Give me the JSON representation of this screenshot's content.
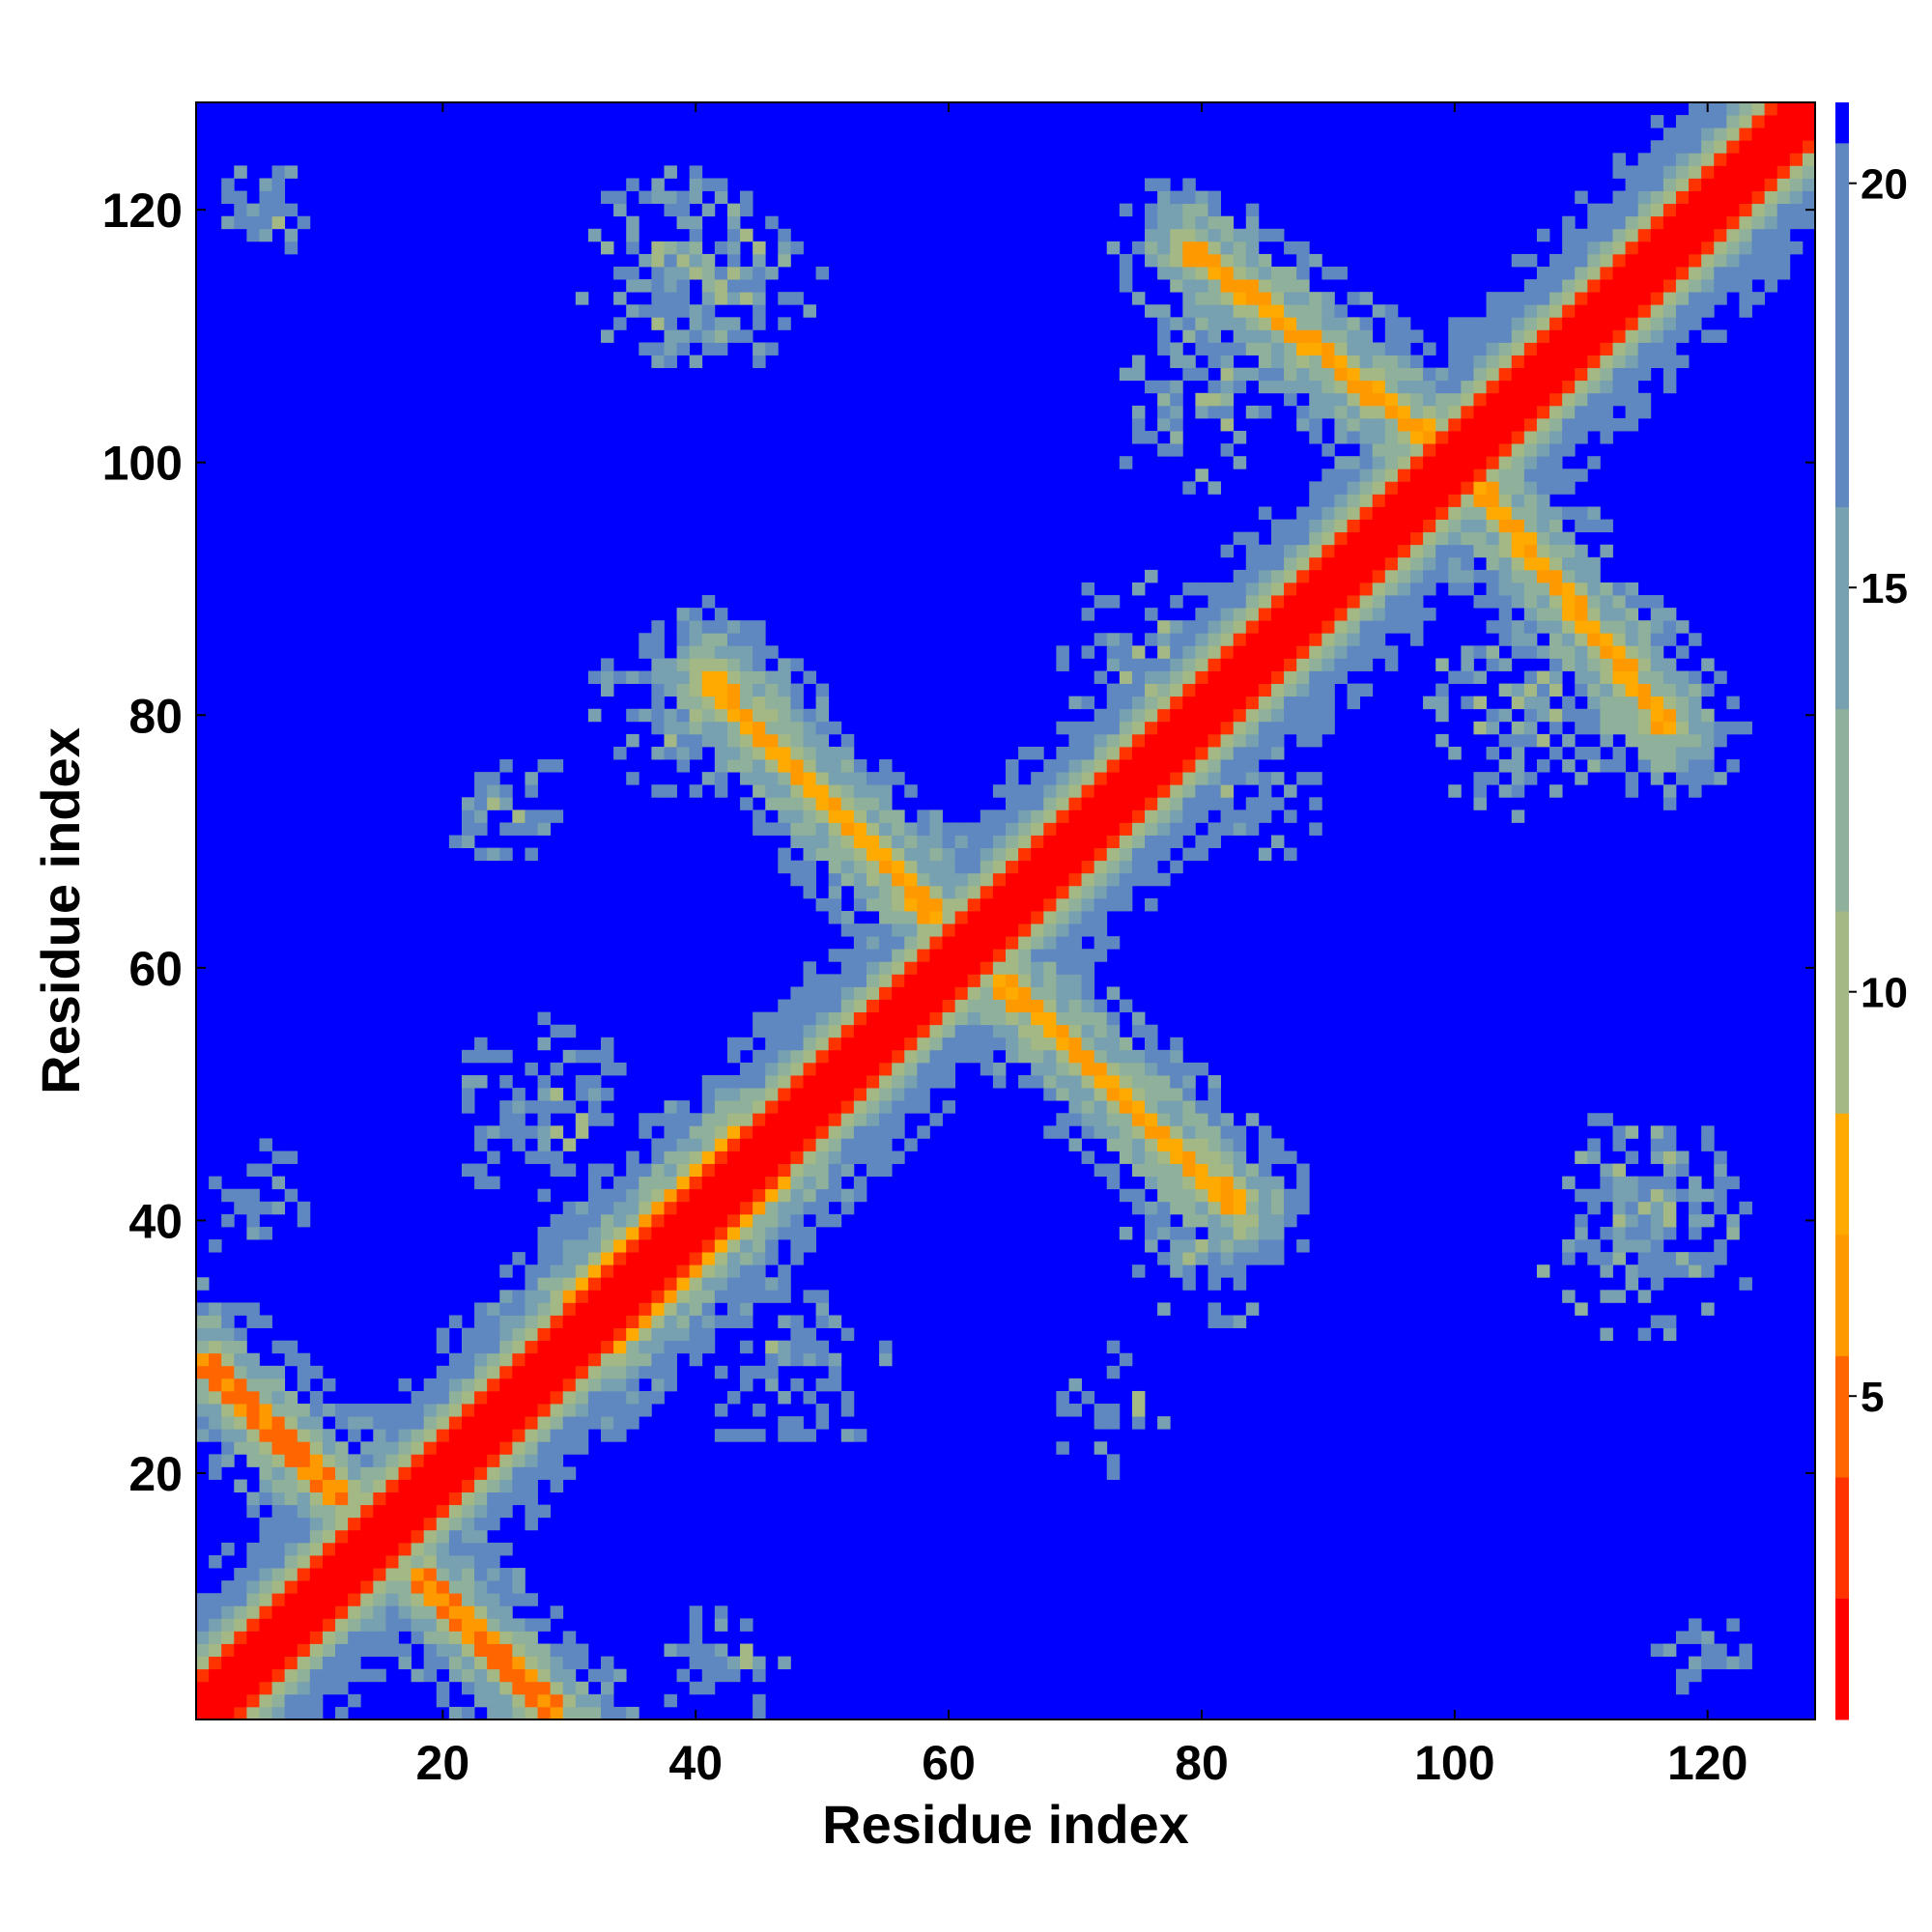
{
  "chart_data": {
    "type": "heatmap",
    "title": "",
    "xlabel": "Residue index",
    "ylabel": "Residue index",
    "xlim": [
      1,
      128
    ],
    "ylim": [
      1,
      128
    ],
    "x_ticks": [
      20,
      40,
      60,
      80,
      100,
      120
    ],
    "y_ticks": [
      20,
      40,
      60,
      80,
      100,
      120
    ],
    "colorbar": {
      "range": [
        1,
        21
      ],
      "ticks": [
        5,
        10,
        15,
        20
      ],
      "colors": [
        "#ff0000",
        "#ff3300",
        "#ff6600",
        "#ff9900",
        "#ffaa00",
        "#a4b885",
        "#8fb09a",
        "#77a0b0",
        "#5f88c0",
        "#0000ff"
      ],
      "boundaries": [
        1,
        2.5,
        4,
        5.5,
        7,
        8.5,
        11,
        13.5,
        16,
        20.5,
        21
      ]
    },
    "grid": false,
    "legend": "none",
    "description_values": {
      "matrix_size": 128,
      "far_value": 21,
      "diagonal_value": 1
    },
    "contact_features": [
      {
        "type": "diagonal",
        "from": [
          1,
          1
        ],
        "to": [
          128,
          128
        ],
        "value": 1
      },
      {
        "type": "antiparallel",
        "from": [
          1,
          29
        ],
        "to": [
          12,
          18
        ],
        "value": 6.5
      },
      {
        "type": "antiparallel",
        "from": [
          18,
          12
        ],
        "to": [
          29,
          1
        ],
        "value": 6.5
      },
      {
        "type": "parallel",
        "from": [
          30,
          33
        ],
        "to": [
          44,
          47
        ],
        "value": 7
      },
      {
        "type": "parallel",
        "from": [
          33,
          30
        ],
        "to": [
          47,
          44
        ],
        "value": 7
      },
      {
        "type": "antiparallel",
        "from": [
          41,
          83
        ],
        "to": [
          59,
          64
        ],
        "value": 7
      },
      {
        "type": "antiparallel",
        "from": [
          64,
          59
        ],
        "to": [
          83,
          41
        ],
        "value": 7
      },
      {
        "type": "antiparallel",
        "from": [
          79,
          117
        ],
        "to": [
          98,
          102
        ],
        "value": 7
      },
      {
        "type": "antiparallel",
        "from": [
          102,
          98
        ],
        "to": [
          117,
          79
        ],
        "value": 7
      }
    ],
    "contact_clusters": [
      {
        "center": [
          39,
          115
        ],
        "radius": 9,
        "value": 13
      },
      {
        "center": [
          115,
          39
        ],
        "radius": 9,
        "value": 13
      },
      {
        "center": [
          80,
          105
        ],
        "radius": 8,
        "value": 13
      },
      {
        "center": [
          105,
          80
        ],
        "radius": 8,
        "value": 13
      },
      {
        "center": [
          38,
          80
        ],
        "radius": 7,
        "value": 14
      },
      {
        "center": [
          80,
          38
        ],
        "radius": 7,
        "value": 14
      },
      {
        "center": [
          48,
          28
        ],
        "radius": 8,
        "value": 15
      },
      {
        "center": [
          28,
          48
        ],
        "radius": 8,
        "value": 15
      },
      {
        "center": [
          115,
          42
        ],
        "radius": 8,
        "value": 15
      },
      {
        "center": [
          42,
          115
        ],
        "radius": 8,
        "value": 15
      },
      {
        "center": [
          25,
          73
        ],
        "radius": 5,
        "value": 15
      },
      {
        "center": [
          73,
          25
        ],
        "radius": 5,
        "value": 15
      },
      {
        "center": [
          6,
          120
        ],
        "radius": 4,
        "value": 14
      },
      {
        "center": [
          120,
          6
        ],
        "radius": 4,
        "value": 14
      },
      {
        "center": [
          5,
          42
        ],
        "radius": 5,
        "value": 15
      },
      {
        "center": [
          42,
          5
        ],
        "radius": 5,
        "value": 15
      },
      {
        "center": [
          75,
          85
        ],
        "radius": 7,
        "value": 15
      },
      {
        "center": [
          85,
          75
        ],
        "radius": 7,
        "value": 15
      }
    ]
  }
}
